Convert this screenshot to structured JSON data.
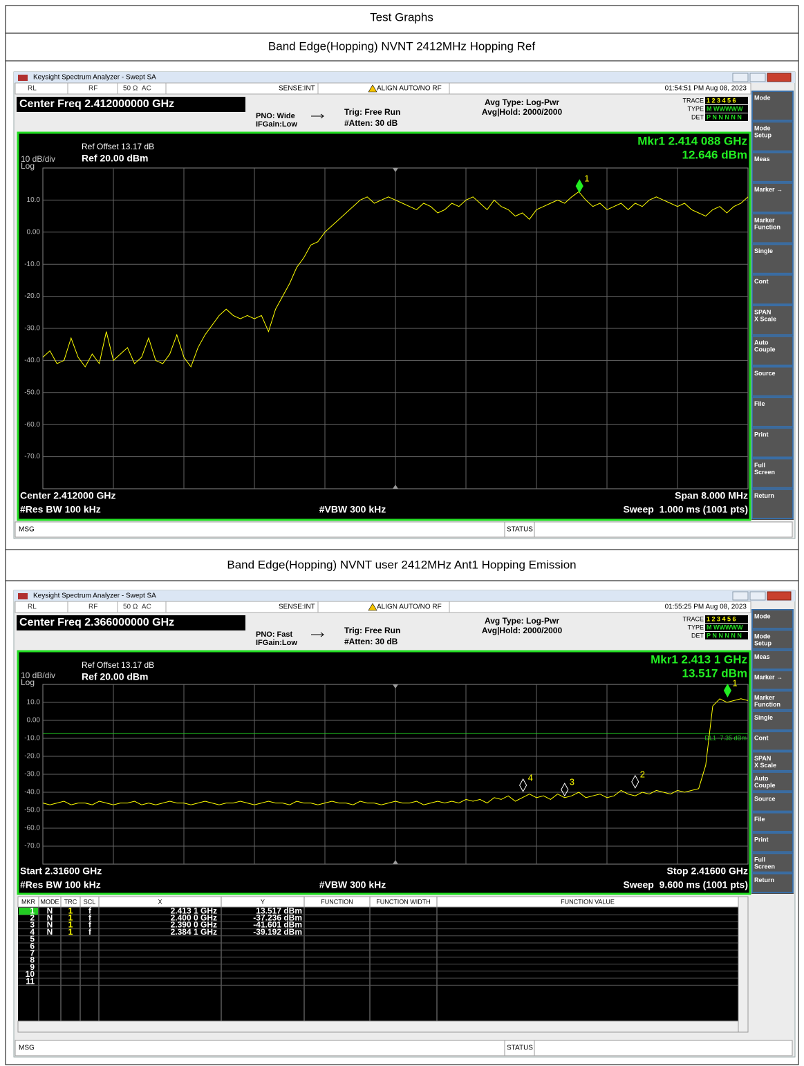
{
  "header": {
    "title": "Test Graphs"
  },
  "graphs": [
    {
      "caption": "Band Edge(Hopping) NVNT 2412MHz Hopping Ref",
      "screen": {
        "window_title": "Keysight Spectrum Analyzer - Swept SA",
        "status_items": [
          "RL",
          "RF",
          "50 Ω  AC",
          "SENSE:INT",
          "ALIGN AUTO/NO RF"
        ],
        "timestamp": "01:54:51 PM Aug 08, 2023",
        "center_freq": "Center Freq 2.412000000 GHz",
        "pno": "PNO: Wide",
        "ifgain": "IFGain:Low",
        "trig": "Trig: Free Run",
        "atten": "#Atten: 30 dB",
        "avg_type": "Avg Type: Log-Pwr",
        "avg_hold": "Avg|Hold: 2000/2000",
        "trace_info": [
          [
            "TRACE",
            "1 2 3 4 5 6"
          ],
          [
            "TYPE",
            "M WWWWW"
          ],
          [
            "DET",
            "P N N N N N"
          ]
        ],
        "ref_offset": "Ref Offset 13.17 dB",
        "scale": "10 dB/div",
        "ref": "Ref 20.00 dBm",
        "log": "Log",
        "marker_readout": [
          "Mkr1 2.414 088 GHz",
          "12.646 dBm"
        ],
        "bottom_left": [
          "Center 2.412000 GHz",
          "#Res BW 100 kHz"
        ],
        "vbw": "#VBW 300 kHz",
        "bottom_right": [
          "Span 8.000 MHz",
          "Sweep  1.000 ms (1001 pts)"
        ],
        "msg": "MSG",
        "status": "STATUS",
        "softkeys": [
          [
            "Mode"
          ],
          [
            "Mode",
            "Setup"
          ],
          [
            "Meas"
          ],
          [
            "Marker →"
          ],
          [
            "Marker",
            "Function"
          ],
          [
            "Single"
          ],
          [
            "Cont"
          ],
          [
            "SPAN",
            "X Scale"
          ],
          [
            "Auto",
            "Couple"
          ],
          [
            "Source"
          ],
          [
            "File"
          ],
          [
            "Print"
          ],
          [
            "Full",
            "Screen"
          ],
          [
            "Return"
          ]
        ],
        "chart": {
          "type": "line",
          "color": "#ffff00",
          "xlim": [
            2.408,
            2.416
          ],
          "ylim": [
            -80,
            20
          ],
          "yticks": [
            {
              "value": 10,
              "label": "10.0"
            },
            {
              "value": 0,
              "label": "0.00"
            },
            {
              "value": -10,
              "label": "-10.0"
            },
            {
              "value": -20,
              "label": "-20.0"
            },
            {
              "value": -30,
              "label": "-30.0"
            },
            {
              "value": -40,
              "label": "-40.0"
            },
            {
              "value": -50,
              "label": "-50.0"
            },
            {
              "value": -60,
              "label": "-60.0"
            },
            {
              "value": -70,
              "label": "-70.0"
            }
          ],
          "trace": [
            -39,
            -37,
            -41,
            -40,
            -33,
            -39,
            -42,
            -38,
            -41,
            -31,
            -40,
            -38,
            -36,
            -41,
            -39,
            -33,
            -40,
            -41,
            -38,
            -32,
            -39,
            -42,
            -36,
            -32,
            -29,
            -26,
            -24,
            -26,
            -27,
            -26,
            -27,
            -26,
            -31,
            -24,
            -20,
            -16,
            -11,
            -8,
            -4,
            -3,
            0,
            2,
            4,
            6,
            8,
            10,
            11,
            9,
            10,
            11,
            10,
            9,
            8,
            7,
            9,
            8,
            6,
            7,
            9,
            8,
            10,
            11,
            9,
            7,
            10,
            8,
            7,
            5,
            6,
            4,
            7,
            8,
            9,
            10,
            9,
            11,
            12.6,
            10,
            8,
            9,
            7,
            8,
            9,
            7,
            9,
            8,
            10,
            11,
            10,
            9,
            8,
            9,
            7,
            6,
            5,
            7,
            8,
            6,
            8,
            9,
            11
          ],
          "markers": [
            {
              "label": "1",
              "x": 2.414088,
              "y": 12.646
            }
          ]
        }
      }
    },
    {
      "caption": "Band Edge(Hopping) NVNT user 2412MHz Ant1 Hopping Emission",
      "screen": {
        "window_title": "Keysight Spectrum Analyzer - Swept SA",
        "status_items": [
          "RL",
          "RF",
          "50 Ω  AC",
          "SENSE:INT",
          "ALIGN AUTO/NO RF"
        ],
        "timestamp": "01:55:25 PM Aug 08, 2023",
        "center_freq": "Center Freq 2.366000000 GHz",
        "pno": "PNO: Fast",
        "ifgain": "IFGain:Low",
        "trig": "Trig: Free Run",
        "atten": "#Atten: 30 dB",
        "avg_type": "Avg Type: Log-Pwr",
        "avg_hold": "Avg|Hold: 2000/2000",
        "trace_info": [
          [
            "TRACE",
            "1 2 3 4 5 6"
          ],
          [
            "TYPE",
            "M WWWWW"
          ],
          [
            "DET",
            "P N N N N N"
          ]
        ],
        "ref_offset": "Ref Offset 13.17 dB",
        "scale": "10 dB/div",
        "ref": "Ref 20.00 dBm",
        "log": "Log",
        "marker_readout": [
          "Mkr1 2.413 1 GHz",
          "13.517 dBm"
        ],
        "bottom_left": [
          "Start 2.31600 GHz",
          "#Res BW 100 kHz"
        ],
        "vbw": "#VBW 300 kHz",
        "bottom_right": [
          "Stop 2.41600 GHz",
          "Sweep  9.600 ms (1001 pts)"
        ],
        "msg": "MSG",
        "status": "STATUS",
        "softkeys": [
          [
            "Mode"
          ],
          [
            "Mode",
            "Setup"
          ],
          [
            "Meas"
          ],
          [
            "Marker →"
          ],
          [
            "Marker",
            "Function"
          ],
          [
            "Single"
          ],
          [
            "Cont"
          ],
          [
            "SPAN",
            "X Scale"
          ],
          [
            "Auto",
            "Couple"
          ],
          [
            "Source"
          ],
          [
            "File"
          ],
          [
            "Print"
          ],
          [
            "Full",
            "Screen"
          ],
          [
            "Return"
          ]
        ],
        "chart": {
          "type": "line",
          "color": "#ffff00",
          "xlim": [
            2.316,
            2.416
          ],
          "ylim": [
            -80,
            20
          ],
          "yticks": [
            {
              "value": 10,
              "label": "10.0"
            },
            {
              "value": 0,
              "label": "0.00"
            },
            {
              "value": -10,
              "label": "-10.0"
            },
            {
              "value": -20,
              "label": "-20.0"
            },
            {
              "value": -30,
              "label": "-30.0"
            },
            {
              "value": -40,
              "label": "-40.0"
            },
            {
              "value": -50,
              "label": "-50.0"
            },
            {
              "value": -60,
              "label": "-60.0"
            },
            {
              "value": -70,
              "label": "-70.0"
            }
          ],
          "display_line": {
            "label": "DL1 -7.35 dBm",
            "value": -7.35
          },
          "trace": [
            -46,
            -47,
            -46,
            -45,
            -47,
            -46,
            -46,
            -47,
            -45,
            -46,
            -47,
            -46,
            -46,
            -45,
            -47,
            -46,
            -47,
            -46,
            -45,
            -46,
            -46,
            -47,
            -46,
            -45,
            -46,
            -47,
            -46,
            -46,
            -45,
            -46,
            -47,
            -46,
            -45,
            -46,
            -46,
            -47,
            -45,
            -46,
            -46,
            -47,
            -46,
            -45,
            -46,
            -46,
            -47,
            -45,
            -46,
            -46,
            -47,
            -46,
            -45,
            -46,
            -46,
            -45,
            -47,
            -46,
            -45,
            -46,
            -45,
            -46,
            -44,
            -45,
            -44,
            -46,
            -43,
            -44,
            -42,
            -45,
            -43,
            -41,
            -43,
            -42,
            -44,
            -41,
            -43,
            -42,
            -40,
            -43,
            -42,
            -41,
            -43,
            -42,
            -39,
            -41,
            -42,
            -40,
            -41,
            -39,
            -40,
            -41,
            -39,
            -40,
            -39,
            -38,
            -25,
            8,
            12,
            10,
            11,
            12,
            11
          ],
          "markers": [
            {
              "label": "1",
              "x": 2.4131,
              "y": 13.517
            },
            {
              "label": "2",
              "x": 2.4,
              "y": -37.236
            },
            {
              "label": "3",
              "x": 2.39,
              "y": -41.601
            },
            {
              "label": "4",
              "x": 2.3841,
              "y": -39.192
            }
          ]
        },
        "marker_table": {
          "headers": [
            "MKR",
            "MODE",
            "TRC",
            "SCL",
            "X",
            "Y",
            "FUNCTION",
            "FUNCTION WIDTH",
            "FUNCTION VALUE"
          ],
          "rows": [
            [
              1,
              "N",
              "1",
              "f",
              "2.413 1 GHz",
              "13.517 dBm"
            ],
            [
              2,
              "N",
              "1",
              "f",
              "2.400 0 GHz",
              "-37.236 dBm"
            ],
            [
              3,
              "N",
              "1",
              "f",
              "2.390 0 GHz",
              "-41.601 dBm"
            ],
            [
              4,
              "N",
              "1",
              "f",
              "2.384 1 GHz",
              "-39.192 dBm"
            ],
            [
              5
            ],
            [
              6
            ],
            [
              7
            ],
            [
              8
            ],
            [
              9
            ],
            [
              10
            ],
            [
              11
            ]
          ]
        }
      }
    }
  ]
}
